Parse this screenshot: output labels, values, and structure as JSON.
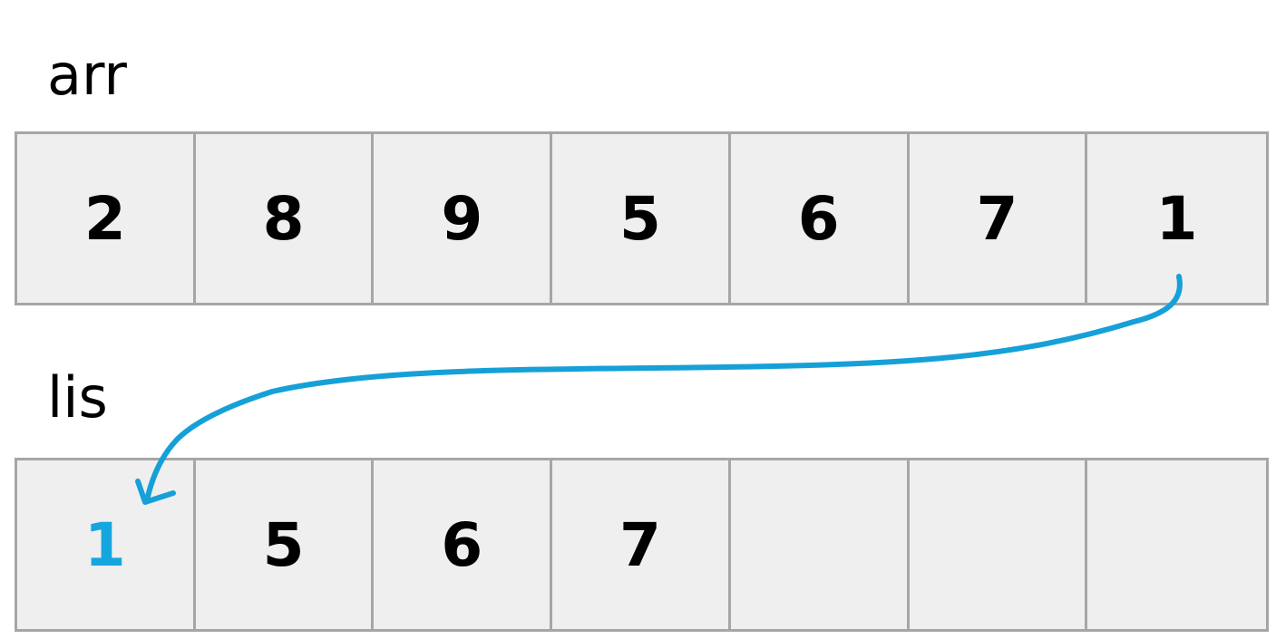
{
  "arr": {
    "label": "arr",
    "cells": [
      "2",
      "8",
      "9",
      "5",
      "6",
      "7",
      "1"
    ]
  },
  "lis": {
    "label": "lis",
    "cells": [
      "1",
      "5",
      "6",
      "7",
      "",
      "",
      ""
    ],
    "highlight_index": 0
  },
  "colors": {
    "highlight": "#16a6de",
    "arrow": "#16a0d8",
    "cell_fill": "#efefef",
    "cell_border": "#a6a6a6"
  },
  "arrow": {
    "from": "arr.cells.6",
    "to": "lis.cells.0"
  }
}
